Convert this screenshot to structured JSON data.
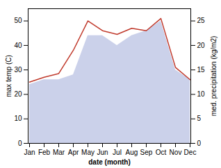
{
  "chart_data": {
    "type": "line",
    "xlabel": "date (month)",
    "ylabel": "max temp (C)",
    "y2label": "med. precipitation (kg/m2)",
    "categories": [
      "Jan",
      "Feb",
      "Mar",
      "Apr",
      "May",
      "Jun",
      "Jul",
      "Aug",
      "Sep",
      "Oct",
      "Nov",
      "Dec"
    ],
    "series": [
      {
        "type": "area",
        "axis": "y2",
        "color": "#c5cce8",
        "values": [
          12,
          13,
          13,
          14,
          22,
          22,
          20,
          22,
          23,
          25,
          15,
          13
        ]
      },
      {
        "type": "line",
        "color": "#c0392b",
        "values": [
          25,
          27,
          28.5,
          38,
          50,
          46,
          44.5,
          47,
          46,
          51,
          31,
          26
        ]
      }
    ],
    "ylim": [
      0,
      55
    ],
    "yticks": [
      0,
      10,
      20,
      30,
      40,
      50
    ],
    "y2lim": [
      0,
      27.5
    ],
    "y2ticks": [
      0,
      5,
      10,
      15,
      20,
      25
    ],
    "grid": false
  }
}
